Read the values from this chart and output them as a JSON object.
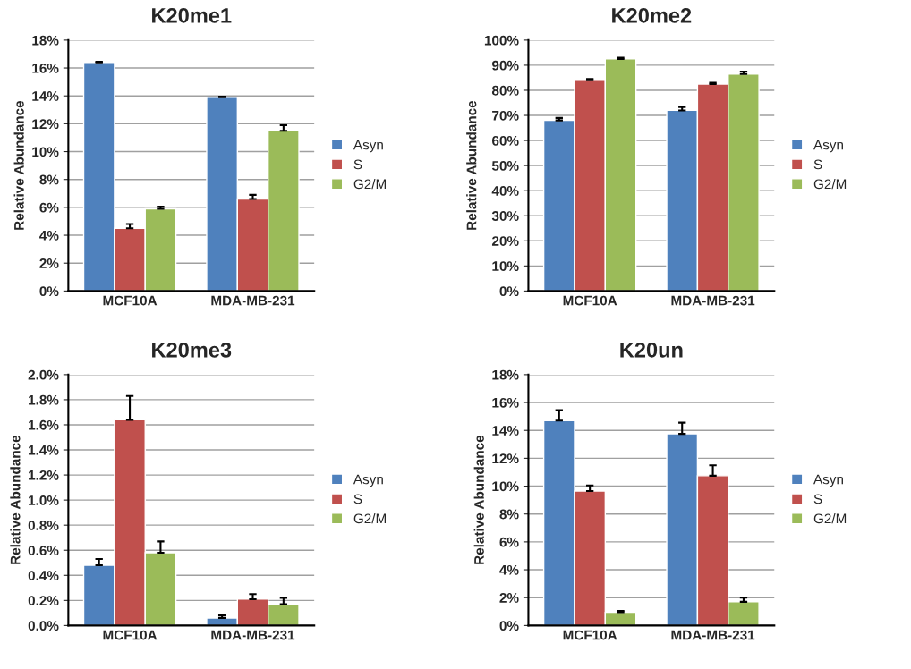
{
  "chart_data": [
    {
      "type": "bar",
      "title": "K20me1",
      "ylabel": "Relative Abundance",
      "categories": [
        "MCF10A",
        "MDA-MB-231"
      ],
      "ylim": [
        0,
        18
      ],
      "yticks": [
        {
          "value": 0,
          "label": "0%"
        },
        {
          "value": 2,
          "label": "2%"
        },
        {
          "value": 4,
          "label": "4%"
        },
        {
          "value": 6,
          "label": "6%"
        },
        {
          "value": 8,
          "label": "8%"
        },
        {
          "value": 10,
          "label": "10%"
        },
        {
          "value": 12,
          "label": "12%"
        },
        {
          "value": 14,
          "label": "14%"
        },
        {
          "value": 16,
          "label": "16%"
        },
        {
          "value": 18,
          "label": "18%"
        }
      ],
      "grid": "y",
      "legend": "right",
      "series": [
        {
          "name": "Asyn",
          "color": "#4f81bd",
          "values": [
            16.4,
            13.9
          ],
          "errors": [
            [
              16.4,
              16.45
            ],
            [
              13.9,
              13.95
            ]
          ]
        },
        {
          "name": "S",
          "color": "#c0504d",
          "values": [
            4.5,
            6.6
          ],
          "errors": [
            [
              4.5,
              4.8
            ],
            [
              6.6,
              6.9
            ]
          ]
        },
        {
          "name": "G2/M",
          "color": "#9bbb59",
          "values": [
            5.9,
            11.5
          ],
          "errors": [
            [
              5.9,
              6.05
            ],
            [
              11.5,
              11.9
            ]
          ]
        }
      ]
    },
    {
      "type": "bar",
      "title": "K20me2",
      "ylabel": "Relative Abundance",
      "categories": [
        "MCF10A",
        "MDA-MB-231"
      ],
      "ylim": [
        0,
        100
      ],
      "yticks": [
        {
          "value": 0,
          "label": "0%"
        },
        {
          "value": 10,
          "label": "10%"
        },
        {
          "value": 20,
          "label": "20%"
        },
        {
          "value": 30,
          "label": "30%"
        },
        {
          "value": 40,
          "label": "40%"
        },
        {
          "value": 50,
          "label": "50%"
        },
        {
          "value": 60,
          "label": "60%"
        },
        {
          "value": 70,
          "label": "70%"
        },
        {
          "value": 80,
          "label": "80%"
        },
        {
          "value": 90,
          "label": "90%"
        },
        {
          "value": 100,
          "label": "100%"
        }
      ],
      "grid": "y",
      "legend": "right",
      "series": [
        {
          "name": "Asyn",
          "color": "#4f81bd",
          "values": [
            68,
            72
          ],
          "errors": [
            [
              68,
              69
            ],
            [
              72,
              73.3
            ]
          ]
        },
        {
          "name": "S",
          "color": "#c0504d",
          "values": [
            84,
            82.5
          ],
          "errors": [
            [
              84,
              84.5
            ],
            [
              82.5,
              83
            ]
          ]
        },
        {
          "name": "G2/M",
          "color": "#9bbb59",
          "values": [
            92.5,
            86.5
          ],
          "errors": [
            [
              92.5,
              93
            ],
            [
              86.5,
              87.5
            ]
          ]
        }
      ]
    },
    {
      "type": "bar",
      "title": "K20me3",
      "ylabel": "Relative Abundance",
      "categories": [
        "MCF10A",
        "MDA-MB-231"
      ],
      "ylim": [
        0,
        2
      ],
      "yticks": [
        {
          "value": 0,
          "label": "0.0%"
        },
        {
          "value": 0.2,
          "label": "0.2%"
        },
        {
          "value": 0.4,
          "label": "0.4%"
        },
        {
          "value": 0.6,
          "label": "0.6%"
        },
        {
          "value": 0.8,
          "label": "0.8%"
        },
        {
          "value": 1.0,
          "label": "1.0%"
        },
        {
          "value": 1.2,
          "label": "1.2%"
        },
        {
          "value": 1.4,
          "label": "1.4%"
        },
        {
          "value": 1.6,
          "label": "1.6%"
        },
        {
          "value": 1.8,
          "label": "1.8%"
        },
        {
          "value": 2.0,
          "label": "2.0%"
        }
      ],
      "grid": "y",
      "legend": "right",
      "series": [
        {
          "name": "Asyn",
          "color": "#4f81bd",
          "values": [
            0.48,
            0.06
          ],
          "errors": [
            [
              0.48,
              0.53
            ],
            [
              0.06,
              0.08
            ]
          ]
        },
        {
          "name": "S",
          "color": "#c0504d",
          "values": [
            1.64,
            0.21
          ],
          "errors": [
            [
              1.64,
              1.83
            ],
            [
              0.21,
              0.25
            ]
          ]
        },
        {
          "name": "G2/M",
          "color": "#9bbb59",
          "values": [
            0.58,
            0.17
          ],
          "errors": [
            [
              0.58,
              0.67
            ],
            [
              0.17,
              0.22
            ]
          ]
        }
      ]
    },
    {
      "type": "bar",
      "title": "K20un",
      "ylabel": "Relative Abundance",
      "categories": [
        "MCF10A",
        "MDA-MB-231"
      ],
      "ylim": [
        0,
        18
      ],
      "yticks": [
        {
          "value": 0,
          "label": "0%"
        },
        {
          "value": 2,
          "label": "2%"
        },
        {
          "value": 4,
          "label": "4%"
        },
        {
          "value": 6,
          "label": "6%"
        },
        {
          "value": 8,
          "label": "8%"
        },
        {
          "value": 10,
          "label": "10%"
        },
        {
          "value": 12,
          "label": "12%"
        },
        {
          "value": 14,
          "label": "14%"
        },
        {
          "value": 16,
          "label": "16%"
        },
        {
          "value": 18,
          "label": "18%"
        }
      ],
      "grid": "y",
      "legend": "right",
      "series": [
        {
          "name": "Asyn",
          "color": "#4f81bd",
          "values": [
            14.7,
            13.75
          ],
          "errors": [
            [
              14.7,
              15.45
            ],
            [
              13.75,
              14.55
            ]
          ]
        },
        {
          "name": "S",
          "color": "#c0504d",
          "values": [
            9.65,
            10.75
          ],
          "errors": [
            [
              9.65,
              10.05
            ],
            [
              10.75,
              11.5
            ]
          ]
        },
        {
          "name": "G2/M",
          "color": "#9bbb59",
          "values": [
            0.95,
            1.7
          ],
          "errors": [
            [
              0.95,
              1.05
            ],
            [
              1.7,
              2.0
            ]
          ]
        }
      ]
    }
  ]
}
